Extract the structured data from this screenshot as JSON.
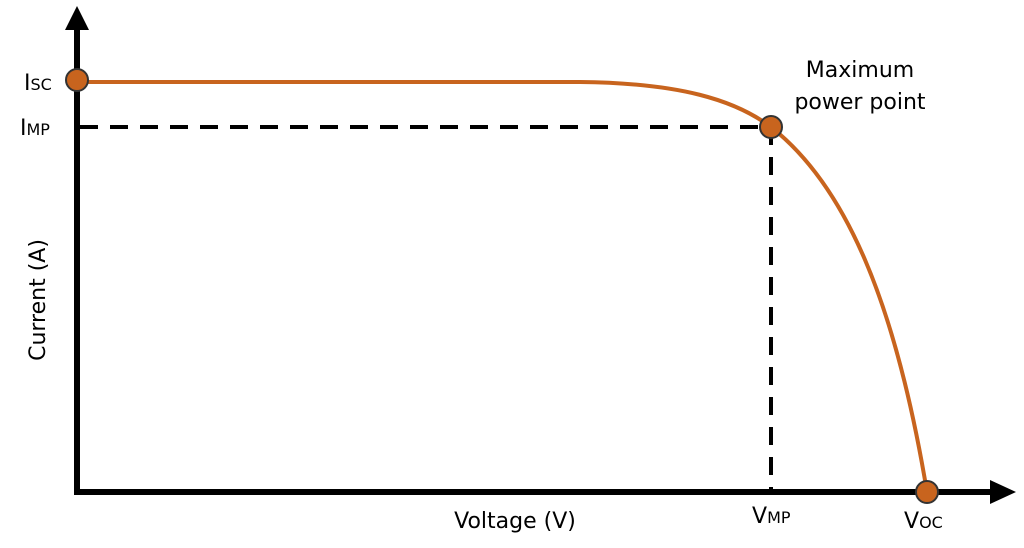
{
  "axes": {
    "y_label": "Current (A)",
    "x_label": "Voltage (V)"
  },
  "points": {
    "isc": {
      "main": "I",
      "sub": "SC"
    },
    "imp": {
      "main": "I",
      "sub": "MP"
    },
    "vmp": {
      "main": "V",
      "sub": "MP"
    },
    "voc": {
      "main": "V",
      "sub": "OC"
    },
    "mpp": {
      "line1": "Maximum",
      "line2": "power point"
    }
  }
}
